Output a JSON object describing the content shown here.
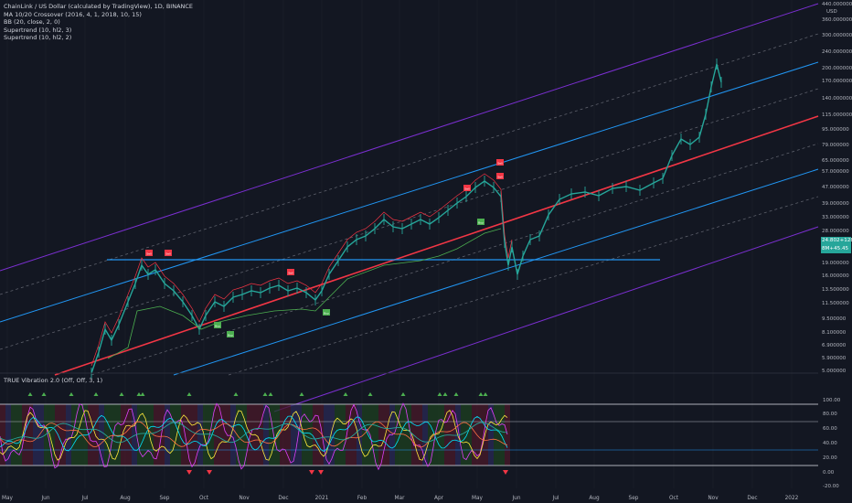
{
  "colors": {
    "background": "#131722",
    "purple_channel": "#7b2fd1",
    "blue_channel": "#2196f3",
    "midline": "#f23645",
    "dotted_channel": "#5d606b",
    "horizontal_level": "#2196f3",
    "candles": "#26a69a",
    "supertrend_green": "#4caf50",
    "supertrend_red": "#f23645",
    "price_tag": "#26a69a"
  },
  "legend": {
    "title": "ChainLink / US Dollar (calculated by TradingView), 1D, BINANCE",
    "lines": [
      "MA 10/20 Crossover (2016, 4, 1, 2018, 10, 15)",
      "BB (20, close, 2, 0)",
      "Supertrend (10, hl2, 3)",
      "Supertrend (10, hl2, 2)"
    ]
  },
  "indicator_legend": "TRUE Vibration 2.0 (Off, Off, 3, 1)",
  "price_axis": {
    "currency": "USD",
    "labels": [
      "440.000000",
      "360.000000",
      "300.000000",
      "240.000000",
      "200.000000",
      "170.000000",
      "140.000000",
      "115.000000",
      "95.000000",
      "79.000000",
      "65.000000",
      "57.000000",
      "47.000000",
      "39.000000",
      "33.000000",
      "28.000000",
      "19.000000",
      "16.000000",
      "13.500000",
      "11.500000",
      "9.500000",
      "8.100000",
      "6.900000",
      "5.900000",
      "5.000000"
    ],
    "price_tags": [
      "24.802+128",
      "8M+45.45"
    ]
  },
  "indicator_axis": {
    "labels": [
      "100.00",
      "80.00",
      "60.00",
      "40.00",
      "20.00",
      "0.00",
      "-20.00"
    ]
  },
  "time_axis": {
    "labels": [
      "May",
      "Jun",
      "Jul",
      "Aug",
      "Sep",
      "Oct",
      "Nov",
      "Dec",
      "2021",
      "Feb",
      "Mar",
      "Apr",
      "May",
      "Jun",
      "Jul",
      "Aug",
      "Sep",
      "Oct",
      "Nov",
      "Dec",
      "2022"
    ]
  },
  "signal_labels": {
    "sell": "Sell",
    "buy": "Buy"
  }
}
